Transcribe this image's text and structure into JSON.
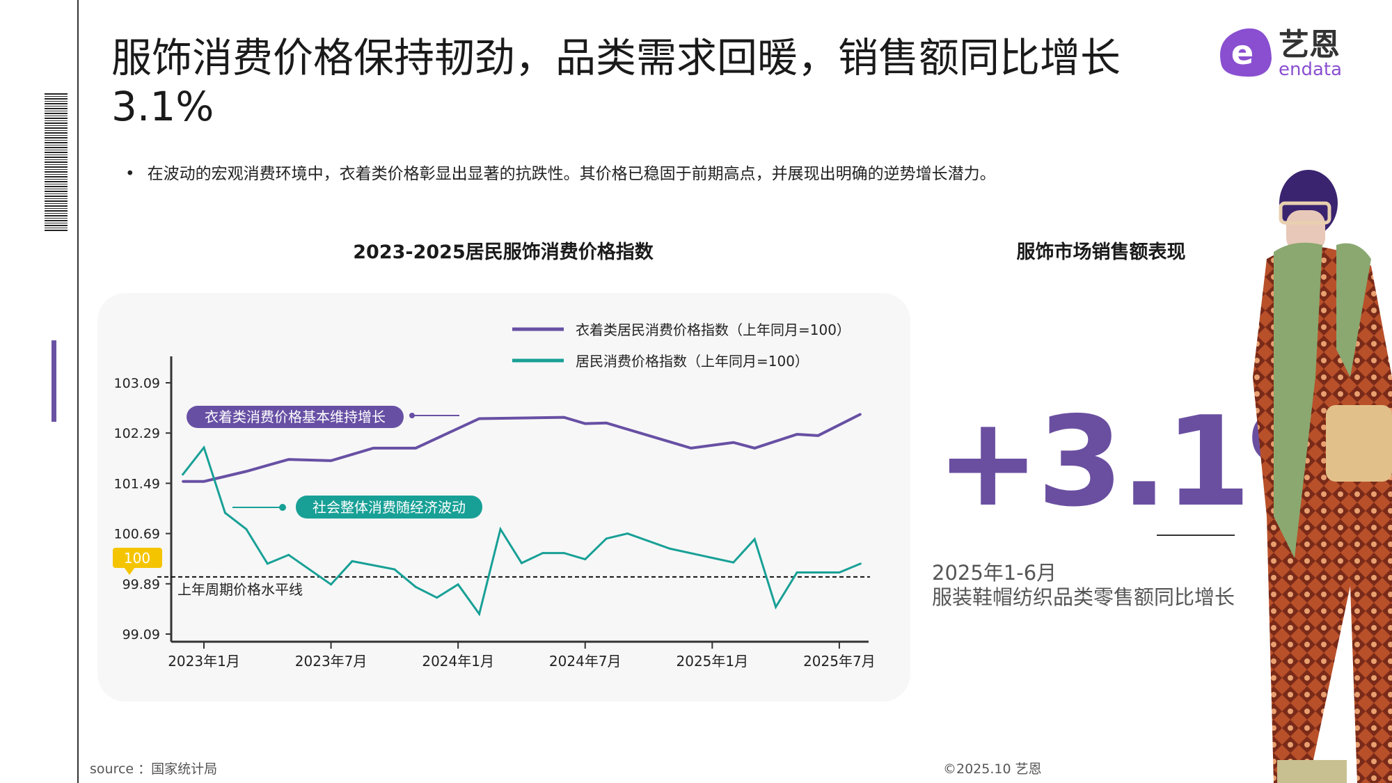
{
  "title": "服饰消费价格保持韧劲，品类需求回暖，销售额同比增长 3.1%",
  "bullet": "在波动的宏观消费环境中，衣着类价格彰显出显著的抗跌性。其价格已稳固于前期高点，并展现出明确的逆势增长潜力。",
  "logo": {
    "cn": "艺恩",
    "en": "endata"
  },
  "left_chart_title": "2023-2025居民服饰消费价格指数",
  "right_title": "服饰市场销售额表现",
  "big_value": "+3.1%",
  "big_caption_1": "2025年1-6月",
  "big_caption_2": "服装鞋帽纺织品类零售额同比增长",
  "source": "source ：国家统计局",
  "copyright": "©2025.10  艺恩",
  "colors": {
    "clothing": "#6750a4",
    "cpi": "#18a096",
    "accent_badge": "#f5c400"
  },
  "chart_data": {
    "type": "line",
    "yticks": [
      "103.09",
      "102.29",
      "101.49",
      "100.69",
      "99.89",
      "99.09"
    ],
    "ylim": [
      99.09,
      103.09
    ],
    "xticks": [
      "2023年1月",
      "2023年7月",
      "2024年1月",
      "2024年7月",
      "2025年1月",
      "2025年7月"
    ],
    "grid": false,
    "legend": "top-right",
    "reference_line": {
      "value": 100,
      "badge": "100",
      "label": "上年周期价格水平线"
    },
    "annotations": [
      "衣着类消费价格基本维持增长",
      "社会整体消费随经济波动"
    ],
    "series": [
      {
        "name": "衣着类居民消费价格指数（上年同月=100）",
        "points": [
          [
            "2022-12",
            101.52
          ],
          [
            "2023-01",
            101.52
          ],
          [
            "2023-03",
            101.68
          ],
          [
            "2023-05",
            101.87
          ],
          [
            "2023-07",
            101.85
          ],
          [
            "2023-09",
            102.05
          ],
          [
            "2023-11",
            102.05
          ],
          [
            "2024-02",
            102.52
          ],
          [
            "2024-06",
            102.54
          ],
          [
            "2024-07",
            102.44
          ],
          [
            "2024-08",
            102.45
          ],
          [
            "2024-12",
            102.05
          ],
          [
            "2025-02",
            102.14
          ],
          [
            "2025-03",
            102.05
          ],
          [
            "2025-05",
            102.27
          ],
          [
            "2025-06",
            102.25
          ],
          [
            "2025-08",
            102.59
          ]
        ]
      },
      {
        "name": "居民消费价格指数（上年同月=100）",
        "points": [
          [
            "2022-12",
            101.63
          ],
          [
            "2023-01",
            102.06
          ],
          [
            "2023-02",
            101.02
          ],
          [
            "2023-03",
            100.76
          ],
          [
            "2023-04",
            100.21
          ],
          [
            "2023-05",
            100.35
          ],
          [
            "2023-07",
            99.88
          ],
          [
            "2023-08",
            100.25
          ],
          [
            "2023-10",
            100.12
          ],
          [
            "2023-11",
            99.84
          ],
          [
            "2023-12",
            99.67
          ],
          [
            "2024-01",
            99.88
          ],
          [
            "2024-02",
            99.41
          ],
          [
            "2024-03",
            100.76
          ],
          [
            "2024-04",
            100.22
          ],
          [
            "2024-05",
            100.38
          ],
          [
            "2024-06",
            100.38
          ],
          [
            "2024-07",
            100.28
          ],
          [
            "2024-08",
            100.61
          ],
          [
            "2024-09",
            100.69
          ],
          [
            "2024-11",
            100.45
          ],
          [
            "2025-02",
            100.23
          ],
          [
            "2025-03",
            100.6
          ],
          [
            "2025-04",
            99.52
          ],
          [
            "2025-05",
            100.07
          ],
          [
            "2025-07",
            100.07
          ],
          [
            "2025-08",
            100.21
          ]
        ]
      }
    ]
  }
}
